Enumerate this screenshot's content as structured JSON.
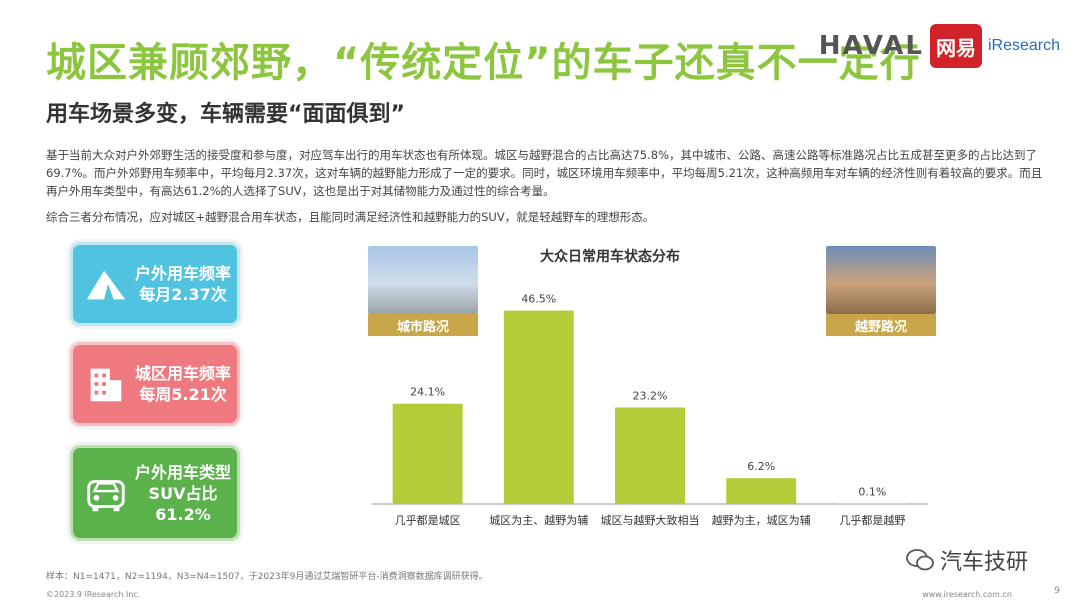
{
  "header": {
    "title": "城区兼顾郊野，“传统定位”的车子还真不一定行",
    "subtitle": "用车场景多变，车辆需要“面面俱到”"
  },
  "logos": {
    "haval": "HAVAL",
    "netease": "网易",
    "iresearch": "iResearch"
  },
  "paragraphs": [
    "基于当前大众对户外郊野生活的接受度和参与度，对应驾车出行的用车状态也有所体现。城区与越野混合的占比高达75.8%，其中城市、公路、高速公路等标准路况占比五成甚至更多的占比达到了69.7%。而户外郊野用车频率中，平均每月2.37次，这对车辆的越野能力形成了一定的要求。同时，城区环境用车频率中，平均每周5.21次，这种高频用车对车辆的经济性则有着较高的要求。而且再户外用车类型中，有高达61.2%的人选择了SUV，这也是出于对其储物能力及通过性的综合考量。",
    "综合三者分布情况，应对城区+越野混合用车状态，且能同时满足经济性和越野能力的SUV，就是轻越野车的理想形态。"
  ],
  "cards": [
    {
      "line1": "户外用车频率",
      "line2": "每月2.37次",
      "color": "#4fc3e0",
      "icon": "tent-icon"
    },
    {
      "line1": "城区用车频率",
      "line2": "每周5.21次",
      "color": "#ee7a80",
      "icon": "building-icon"
    },
    {
      "line1": "户外用车类型",
      "line2": "SUV占比",
      "line3": "61.2%",
      "color": "#5bb24a",
      "icon": "car-icon"
    }
  ],
  "photos": {
    "city_label": "城市路况",
    "offroad_label": "越野路况"
  },
  "chart_data": {
    "type": "bar",
    "title": "大众日常用车状态分布",
    "categories": [
      "几乎都是城区",
      "城区为主、越野为辅",
      "城区与越野大致相当",
      "越野为主，城区为辅",
      "几乎都是越野"
    ],
    "values": [
      24.1,
      46.5,
      23.2,
      6.2,
      0.1
    ],
    "value_labels": [
      "24.1%",
      "46.5%",
      "23.2%",
      "6.2%",
      "0.1%"
    ],
    "unit": "%",
    "bar_color": "#b5cc3a",
    "ylim": [
      0,
      50
    ],
    "grid": false,
    "legend": "none"
  },
  "footer": {
    "note": "样本：N1=1471，N2=1194，N3=N4=1507，于2023年9月通过艾瑞智研平台-消费洞察数据库调研获得。",
    "copyright": "©2023.9 iResearch Inc.",
    "website": "www.iresearch.com.cn",
    "page": "9",
    "watermark": "汽车技研"
  }
}
